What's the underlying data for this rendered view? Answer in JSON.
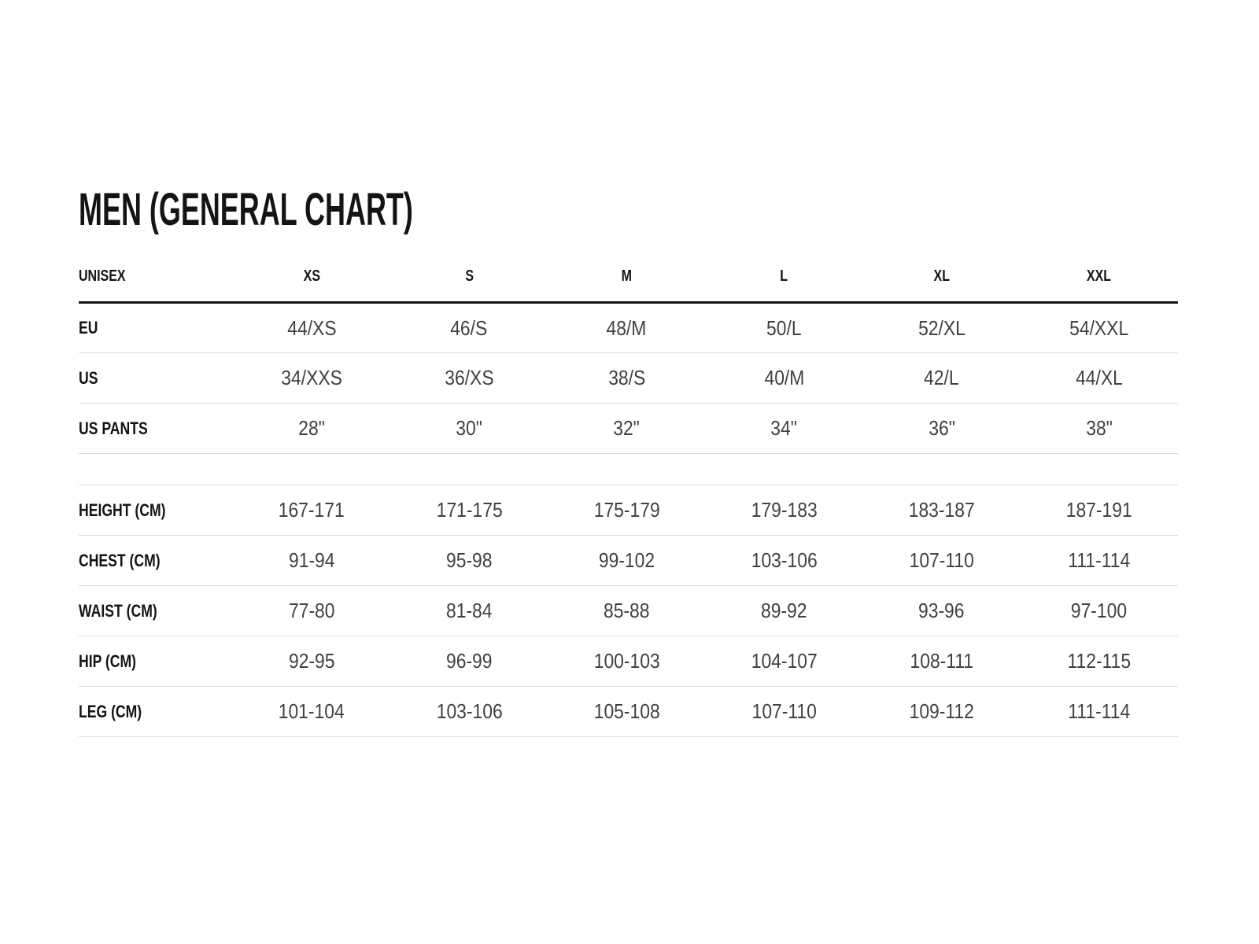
{
  "title": "MEN (GENERAL CHART)",
  "table": {
    "columns": [
      "UNISEX",
      "XS",
      "S",
      "M",
      "L",
      "XL",
      "XXL"
    ],
    "rows": [
      {
        "label": "EU",
        "values": [
          "44/XS",
          "46/S",
          "48/M",
          "50/L",
          "52/XL",
          "54/XXL"
        ]
      },
      {
        "label": "US",
        "values": [
          "34/XXS",
          "36/XS",
          "38/S",
          "40/M",
          "42/L",
          "44/XL"
        ]
      },
      {
        "label": "US PANTS",
        "values": [
          "28\"",
          "30\"",
          "32\"",
          "34\"",
          "36\"",
          "38\""
        ]
      },
      {
        "label": "",
        "values": [
          "",
          "",
          "",
          "",
          "",
          ""
        ],
        "spacer": true
      },
      {
        "label": "HEIGHT (CM)",
        "values": [
          "167-171",
          "171-175",
          "175-179",
          "179-183",
          "183-187",
          "187-191"
        ]
      },
      {
        "label": "CHEST (CM)",
        "values": [
          "91-94",
          "95-98",
          "99-102",
          "103-106",
          "107-110",
          "111-114"
        ]
      },
      {
        "label": "WAIST (CM)",
        "values": [
          "77-80",
          "81-84",
          "85-88",
          "89-92",
          "93-96",
          "97-100"
        ]
      },
      {
        "label": "HIP (CM)",
        "values": [
          "92-95",
          "96-99",
          "100-103",
          "104-107",
          "108-111",
          "112-115"
        ]
      },
      {
        "label": "LEG (CM)",
        "values": [
          "101-104",
          "103-106",
          "105-108",
          "107-110",
          "109-112",
          "111-114"
        ]
      }
    ]
  },
  "colors": {
    "background": "#ffffff",
    "text_primary": "#141414",
    "text_data": "#414141",
    "divider": "#d8dbde",
    "header_rule": "#141414"
  }
}
